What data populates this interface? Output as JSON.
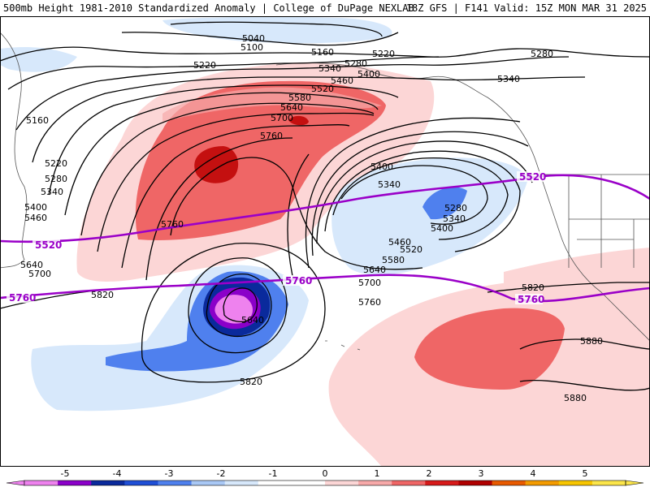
{
  "header": {
    "title": "500mb Height 1981-2010 Standardized Anomaly | College of DuPage NEXLAB",
    "run_info": "18Z GFS | F141 Valid: 15Z MON MAR 31 2025"
  },
  "contours": {
    "height_labels": [
      "5040",
      "5100",
      "5160",
      "5220",
      "5280",
      "5340",
      "5400",
      "5460",
      "5520",
      "5580",
      "5640",
      "5700",
      "5760",
      "5820",
      "5880"
    ],
    "thickness_labels": [
      "5520",
      "5760"
    ]
  },
  "legend": {
    "tick_labels": [
      "-5",
      "-4",
      "-3",
      "-2",
      "-1",
      "0",
      "1",
      "2",
      "3",
      "4",
      "5"
    ],
    "colors": [
      "#ee82ee",
      "#8b00c9",
      "#0a2a9c",
      "#1f4fd6",
      "#4f80ee",
      "#a9c8f5",
      "#d7e8fb",
      "#ffffff",
      "#ffffff",
      "#fcd6d6",
      "#f7a9a9",
      "#ef6666",
      "#d71a1a",
      "#b00000",
      "#e85a00",
      "#f39b00",
      "#f7c500",
      "#fbe54a"
    ]
  },
  "colors": {
    "thickness_line": "#9a00c8",
    "height_contour": "#000000",
    "border": "#555555"
  }
}
